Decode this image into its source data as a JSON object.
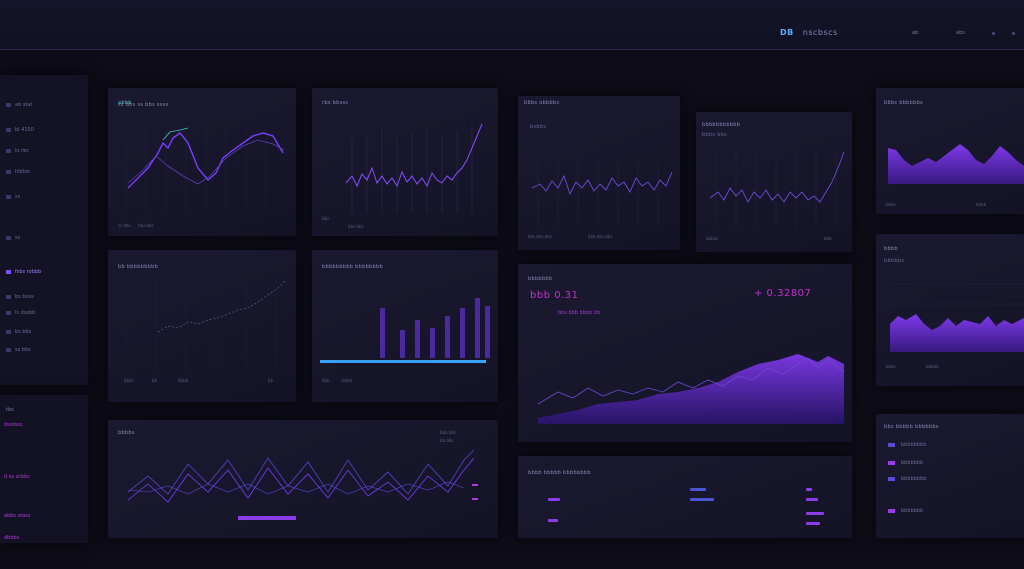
{
  "topbar": {
    "brand_mark": "DB",
    "brand_text": "nscbscs",
    "items": [
      "ab",
      "abs",
      "..."
    ]
  },
  "sidebar": {
    "items": [
      {
        "label": "ab stat"
      },
      {
        "label": "bl 4150"
      },
      {
        "label": "ts rbc"
      },
      {
        "label": "hlblos"
      },
      {
        "label": "ss"
      },
      {
        "label": "ss"
      },
      {
        "label": "fsbs robbb",
        "active": true
      },
      {
        "label": "bs boss"
      },
      {
        "label": "ls dssbb"
      },
      {
        "label": "bs bbs"
      },
      {
        "label": "ss bbs"
      }
    ]
  },
  "sidebar2": {
    "title": "tbs",
    "items": [
      "dsotssc",
      "d ss scbbc",
      "abbs stass",
      "dbbbs"
    ]
  },
  "panels": {
    "p1": {
      "title": "ss bbs ss bbs ssss",
      "subtitle": "abbb",
      "ticks": [
        "ss bbs",
        "bbs bbs"
      ]
    },
    "p2": {
      "title": "rbs bbsss",
      "ticks": [
        "bbs",
        "bbs bbs"
      ]
    },
    "p3": {
      "title": "bbbs obbbbs",
      "subtitle": "bsbbs",
      "ticks": [
        "bbs bbs bbs",
        "bbb bbs bbs"
      ]
    },
    "p4": {
      "title": "bbbbbbbbbbb",
      "subtitle": "bbbs bbs",
      "ticks": [
        "bbbbs",
        "bbb"
      ]
    },
    "p5": {
      "title": "bbbs bbbbbbs",
      "ticks": [
        "bbbs",
        "bbbb"
      ]
    },
    "p6": {
      "title": "bb bbbbbbbbb",
      "ticks": [
        "bbbs",
        "bb",
        "bbbb",
        "bb"
      ]
    },
    "p7": {
      "title": "bbbbbbbbb bbbbbbbb",
      "ticks": [
        "bbb",
        "bbbb"
      ]
    },
    "p8": {
      "title": "bbbbbbb",
      "value_left": "bbb 0.31",
      "value_right": "+ 0.32807",
      "sub": "bbs bbb bbbb bb"
    },
    "p9": {
      "title": "bbbb",
      "subtitle": "bbbbbs",
      "ticks": [
        "bbbs",
        "bbbbb"
      ]
    },
    "p10": {
      "title": "bbbbs",
      "legend": [
        "bbb bbs",
        "bb bbs"
      ]
    },
    "p11": {
      "title": "bbbb bbbbb bbbbbbbb"
    },
    "p12": {
      "title": "bbs bbbbb bbbbbbs",
      "rows": [
        "bbbbbbbb",
        "bbbbbbb",
        "bbbbbbbb",
        "bbbbbbb"
      ]
    }
  },
  "colors": {
    "accent": "#8b3de8",
    "accent_line": "#7a3dff",
    "accent_blue": "#3aa0ff",
    "panel": "#171629",
    "background": "#0d0c17"
  }
}
